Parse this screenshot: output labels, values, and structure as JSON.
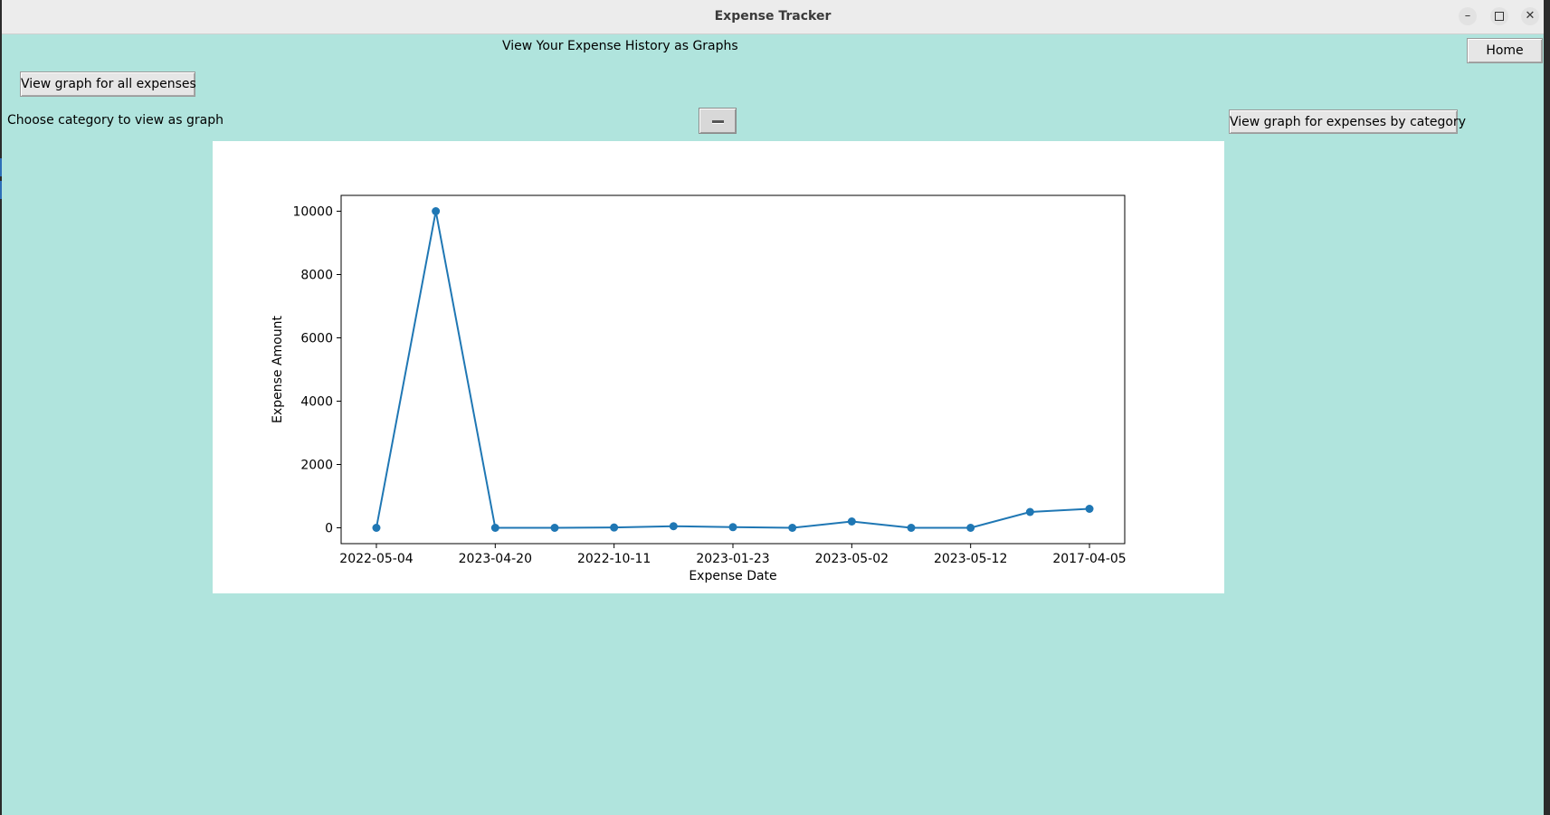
{
  "window": {
    "title": "Expense Tracker",
    "controls": {
      "minimize": "–",
      "maximize": "",
      "close": "✕"
    }
  },
  "header": {
    "heading": "View Your Expense History as Graphs",
    "home_label": "Home"
  },
  "controls": {
    "all_expenses_label": "View graph for all expenses",
    "choose_category_label": "Choose category to view as graph",
    "category_dropdown_value": "",
    "by_category_label": "View graph for expenses by category"
  },
  "icons": [
    "minimize-icon",
    "maximize-icon",
    "close-icon",
    "dropdown-indicator-icon"
  ],
  "colors": {
    "background": "#b0e4dd",
    "line": "#1f77b4",
    "titlebar": "#ececec"
  },
  "chart_data": {
    "type": "line",
    "title": "",
    "xlabel": "Expense Date",
    "ylabel": "Expense Amount",
    "x": [
      "2022-05-04",
      "",
      "2023-04-20",
      "",
      "2022-10-11",
      "",
      "2023-01-23",
      "",
      "2023-05-02",
      "",
      "2023-05-12",
      "",
      "2017-04-05"
    ],
    "values": [
      0,
      10000,
      0,
      0,
      10,
      50,
      20,
      0,
      200,
      0,
      0,
      500,
      600
    ],
    "yticks": [
      0,
      2000,
      4000,
      6000,
      8000,
      10000
    ],
    "ylim": [
      -500,
      10500
    ],
    "markers": true,
    "grid": false,
    "legend": "none"
  }
}
